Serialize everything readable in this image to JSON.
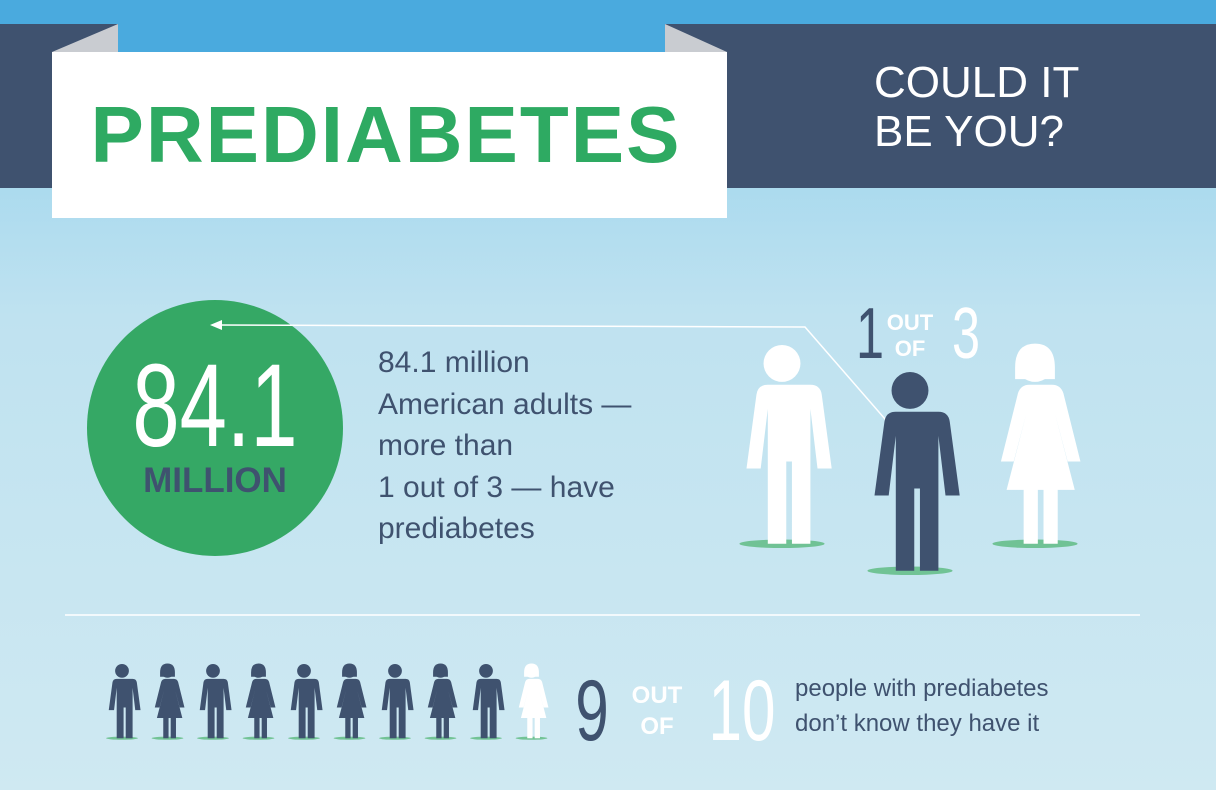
{
  "header": {
    "title": "PREDIABETES",
    "tagline": [
      "COULD IT",
      "BE YOU?"
    ]
  },
  "stat": {
    "number": 84.1,
    "unit": "MILLION",
    "description": [
      "84.1 million",
      "American adults —",
      "more than",
      "1 out of 3 — have",
      "prediabetes"
    ]
  },
  "ratio_one": {
    "count": 1,
    "out": "OUT",
    "of": "OF",
    "total": 3
  },
  "ratio_two": {
    "count": 9,
    "out": "OUT",
    "of": "OF",
    "total": 10,
    "description": [
      "people with prediabetes",
      "don’t know they have it"
    ]
  }
}
